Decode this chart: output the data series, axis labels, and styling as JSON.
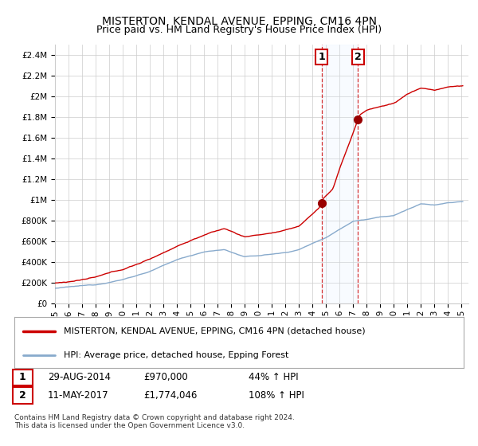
{
  "title": "MISTERTON, KENDAL AVENUE, EPPING, CM16 4PN",
  "subtitle": "Price paid vs. HM Land Registry's House Price Index (HPI)",
  "xlim_start": 1995.0,
  "xlim_end": 2025.5,
  "ylim": [
    0,
    2500000
  ],
  "yticks": [
    0,
    200000,
    400000,
    600000,
    800000,
    1000000,
    1200000,
    1400000,
    1600000,
    1800000,
    2000000,
    2200000,
    2400000
  ],
  "ytick_labels": [
    "£0",
    "£200K",
    "£400K",
    "£600K",
    "£800K",
    "£1M",
    "£1.2M",
    "£1.4M",
    "£1.6M",
    "£1.8M",
    "£2M",
    "£2.2M",
    "£2.4M"
  ],
  "xticks": [
    1995,
    1996,
    1997,
    1998,
    1999,
    2000,
    2001,
    2002,
    2003,
    2004,
    2005,
    2006,
    2007,
    2008,
    2009,
    2010,
    2011,
    2012,
    2013,
    2014,
    2015,
    2016,
    2017,
    2018,
    2019,
    2020,
    2021,
    2022,
    2023,
    2024,
    2025
  ],
  "sale1_x": 2014.66,
  "sale1_y": 970000,
  "sale2_x": 2017.36,
  "sale2_y": 1774046,
  "sale1_label": "1",
  "sale2_label": "2",
  "sale1_date": "29-AUG-2014",
  "sale1_price": "£970,000",
  "sale1_hpi": "44% ↑ HPI",
  "sale2_date": "11-MAY-2017",
  "sale2_price": "£1,774,046",
  "sale2_hpi": "108% ↑ HPI",
  "legend_line1": "MISTERTON, KENDAL AVENUE, EPPING, CM16 4PN (detached house)",
  "legend_line2": "HPI: Average price, detached house, Epping Forest",
  "footer": "Contains HM Land Registry data © Crown copyright and database right 2024.\nThis data is licensed under the Open Government Licence v3.0.",
  "line_color_red": "#cc0000",
  "line_color_blue": "#88aacc",
  "shade_color": "#ddeeff",
  "bg_color": "#ffffff",
  "grid_color": "#cccccc"
}
